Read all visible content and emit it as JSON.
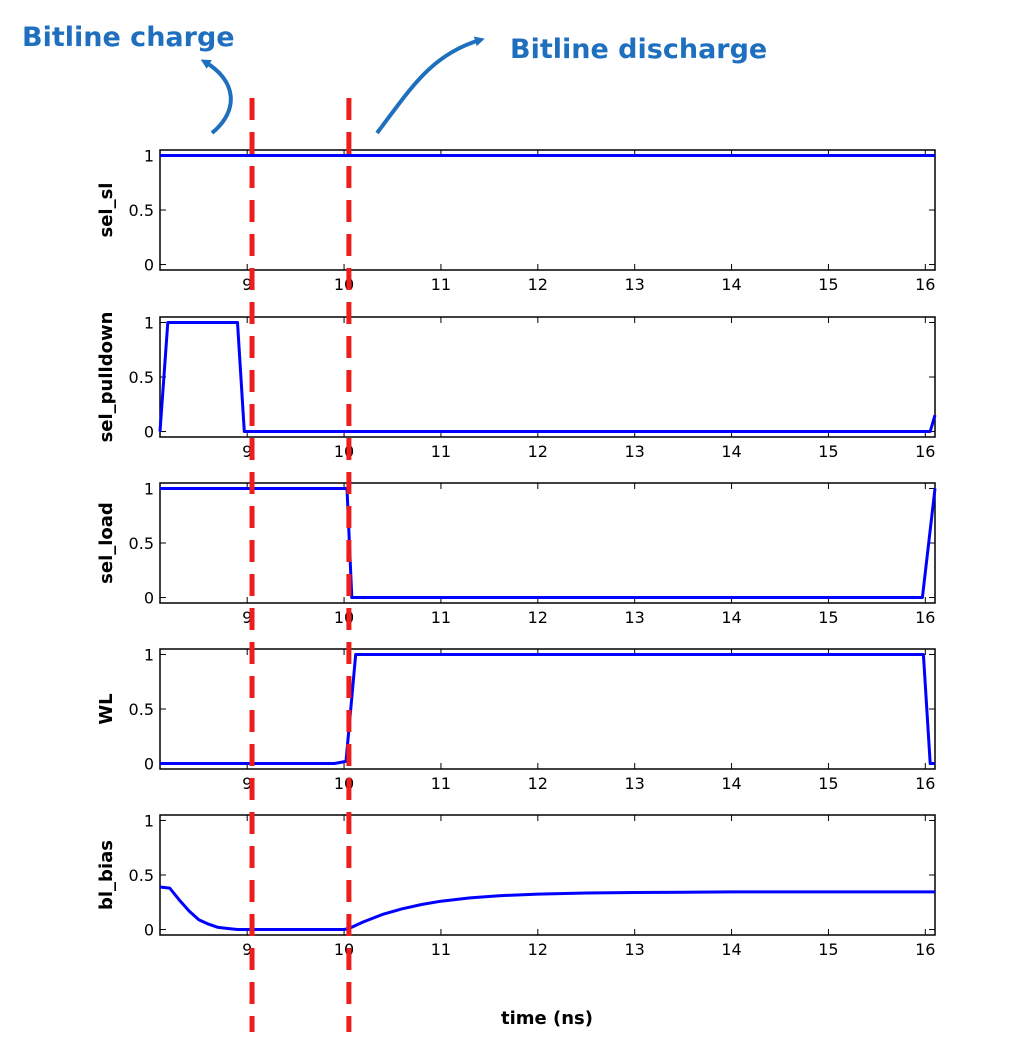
{
  "annotations": {
    "charge_label": "Bitline charge",
    "discharge_label": "Bitline discharge",
    "color": "#1f6fbf"
  },
  "marker_color": "#ee1c1c",
  "trace_color": "#0000ff",
  "chart_data": {
    "type": "line",
    "xlabel": "time (ns)",
    "xlim": [
      8.1,
      16.1
    ],
    "ylim": [
      -0.05,
      1.05
    ],
    "x_ticks": [
      9,
      10,
      11,
      12,
      13,
      14,
      15,
      16
    ],
    "y_ticks": [
      0,
      0.5,
      1
    ],
    "y_tick_labels": [
      "0",
      "0.5",
      "1"
    ],
    "markers_x": [
      9.05,
      10.05
    ],
    "panels": [
      {
        "ylabel": "sel_sl",
        "x": [
          8.1,
          16.1
        ],
        "y": [
          1,
          1
        ]
      },
      {
        "ylabel": "sel_pulldown",
        "x": [
          8.1,
          8.18,
          8.28,
          8.9,
          8.97,
          16.05,
          16.1
        ],
        "y": [
          0,
          1,
          1,
          1,
          0,
          0,
          0.15
        ]
      },
      {
        "ylabel": "sel_load",
        "x": [
          8.1,
          10.03,
          10.08,
          15.97,
          16.1
        ],
        "y": [
          1,
          1,
          0,
          0,
          1
        ]
      },
      {
        "ylabel": "WL",
        "x": [
          8.1,
          9.9,
          10.02,
          10.12,
          15.98,
          16.05,
          16.1
        ],
        "y": [
          0,
          0,
          0.02,
          1,
          1,
          0,
          0
        ]
      },
      {
        "ylabel": "bl_bias",
        "x": [
          8.1,
          8.2,
          8.3,
          8.4,
          8.5,
          8.6,
          8.7,
          8.8,
          8.9,
          9.0,
          10.0,
          10.05,
          10.2,
          10.4,
          10.6,
          10.8,
          11.0,
          11.3,
          11.6,
          12.0,
          12.5,
          13.0,
          13.5,
          14.0,
          16.1
        ],
        "y": [
          0.39,
          0.38,
          0.27,
          0.17,
          0.09,
          0.05,
          0.02,
          0.01,
          0.0,
          0.0,
          0.0,
          0.01,
          0.07,
          0.14,
          0.19,
          0.23,
          0.26,
          0.29,
          0.31,
          0.325,
          0.335,
          0.34,
          0.342,
          0.345,
          0.345
        ]
      }
    ]
  }
}
